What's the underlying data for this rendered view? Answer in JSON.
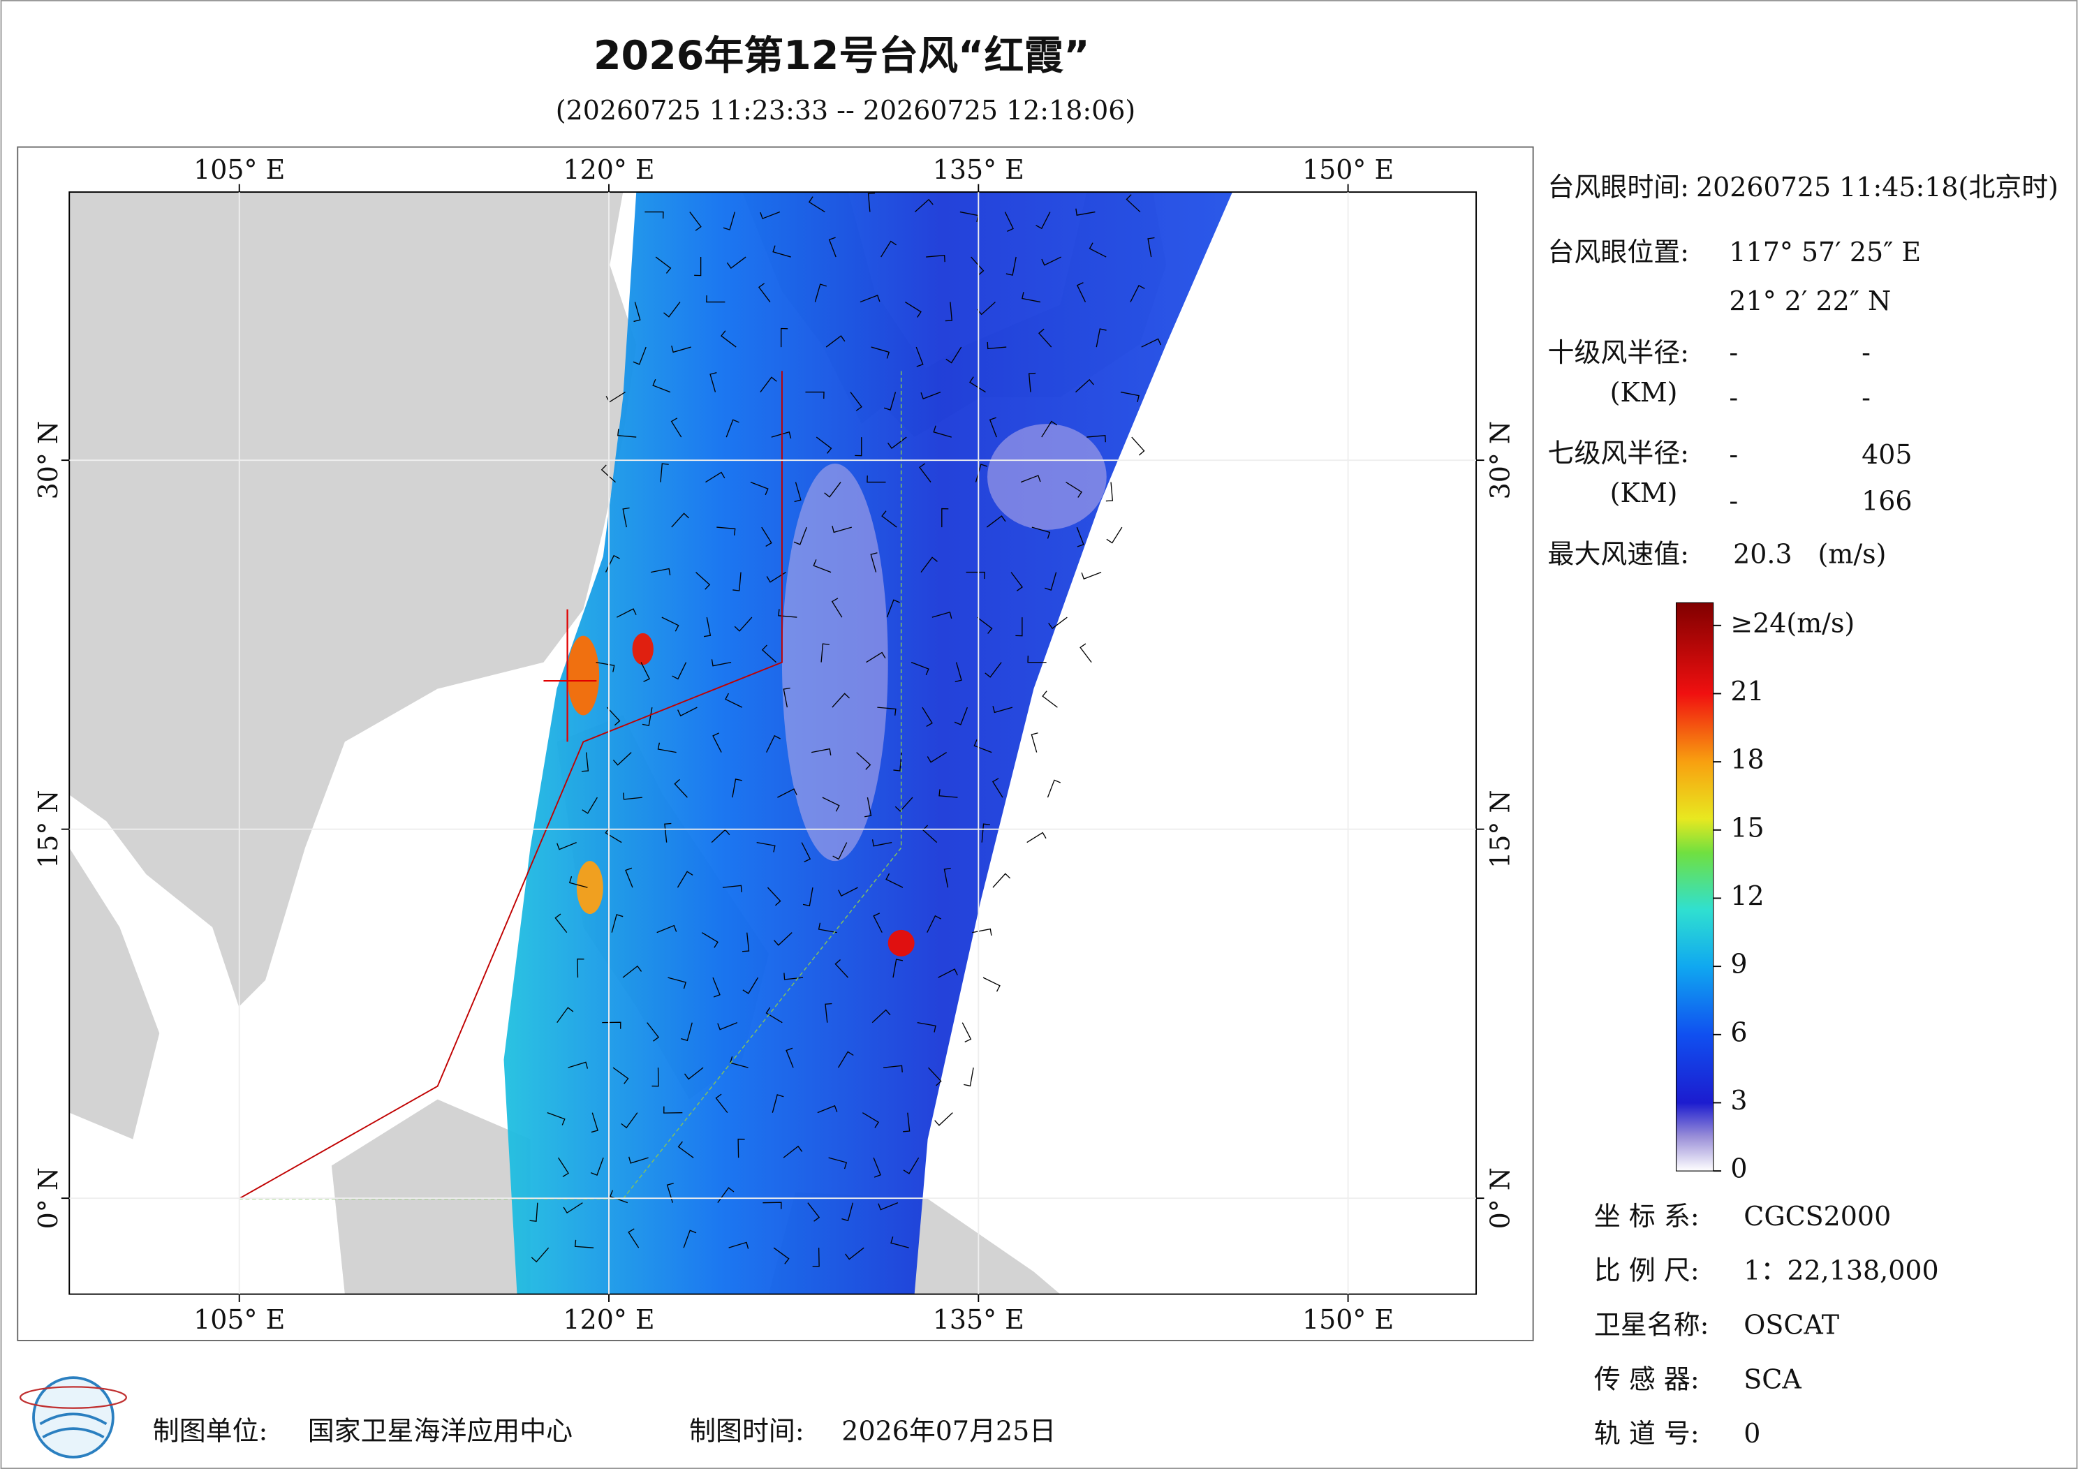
{
  "header": {
    "title": "2026年第12号台风“红霞”",
    "subtitle": "(20260725 11:23:33 -- 20260725 12:18:06)"
  },
  "map": {
    "xlim": [
      98.1,
      155.2
    ],
    "ylim": [
      -3.9,
      40.9
    ],
    "xticks": [
      {
        "value": 105,
        "label": "105° E"
      },
      {
        "value": 120,
        "label": "120° E"
      },
      {
        "value": 135,
        "label": "135° E"
      },
      {
        "value": 150,
        "label": "150° E"
      }
    ],
    "yticks": [
      {
        "value": 0,
        "label": "0° N"
      },
      {
        "value": 15,
        "label": "15° N"
      },
      {
        "value": 30,
        "label": "30° N"
      }
    ]
  },
  "info": {
    "eye_time": {
      "label": "台风眼时间:",
      "value": "20260725 11:45:18(北京时)"
    },
    "eye_position": {
      "label": "台风眼位置:",
      "lon": "117° 57′ 25″ E",
      "lat": "21° 2′ 22″ N"
    },
    "r10": {
      "label": "十级风半径:",
      "unit": "(KM)",
      "rows": [
        [
          "-",
          "-"
        ],
        [
          "-",
          "-"
        ]
      ]
    },
    "r7": {
      "label": "七级风半径:",
      "unit": "(KM)",
      "rows": [
        [
          "-",
          "405"
        ],
        [
          "-",
          "166"
        ]
      ]
    },
    "max_wind": {
      "label": "最大风速值:",
      "value": "20.3",
      "unit": "(m/s)"
    }
  },
  "colorbar": {
    "lim": [
      0,
      25
    ],
    "ticks": [
      {
        "value": 24,
        "label": "≥24(m/s)"
      },
      21,
      18,
      15,
      12,
      9,
      6,
      3,
      0
    ]
  },
  "meta": [
    {
      "label": "坐 标 系:",
      "value": "CGCS2000"
    },
    {
      "label": "比 例 尺:",
      "value": "1：22,138,000"
    },
    {
      "label": "卫星名称:",
      "value": "OSCAT"
    },
    {
      "label": "传 感 器:",
      "value": "SCA"
    },
    {
      "label": "轨 道 号:",
      "value": "0"
    }
  ],
  "footer": {
    "unit_label": "制图单位:",
    "unit": "国家卫星海洋应用中心",
    "time_label": "制图时间:",
    "time": "2026年07月25日"
  }
}
